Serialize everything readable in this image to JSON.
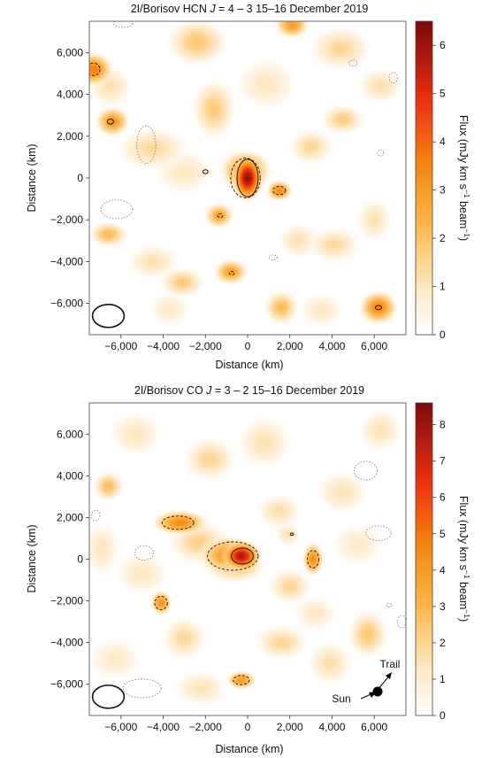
{
  "chart_data": [
    {
      "type": "heatmap",
      "title_prefix": "2I/Borisov HCN ",
      "title_italic": "J",
      "title_suffix": " = 4 – 3 15–16 December 2019",
      "xlabel": "Distance (km)",
      "ylabel": "Distance (km)",
      "xlim": [
        -7500,
        7500
      ],
      "ylim": [
        -7500,
        7500
      ],
      "x_ticks": [
        -6000,
        -4000,
        -2000,
        0,
        2000,
        4000,
        6000
      ],
      "x_tick_labels": [
        "−6,000",
        "−4,000",
        "−2,000",
        "0",
        "2,000",
        "4,000",
        "6,000"
      ],
      "y_ticks": [
        6000,
        4000,
        2000,
        0,
        -2000,
        -4000,
        -6000
      ],
      "y_tick_labels": [
        "6,000",
        "4,000",
        "2,000",
        "0",
        "−2,000",
        "−4,000",
        "−6,000"
      ],
      "colorbar": {
        "label_prefix": "Flux (mJy km s",
        "label_exp1": "−1",
        "label_mid": " beam",
        "label_exp2": "−1",
        "label_suffix": ")",
        "range": [
          0,
          6.5
        ],
        "ticks": [
          0,
          1,
          2,
          3,
          4,
          5,
          6
        ],
        "tick_labels": [
          "0",
          "1",
          "2",
          "3",
          "4",
          "5",
          "6"
        ]
      },
      "peak": {
        "x": 0,
        "y": 0,
        "flux": 6.2
      },
      "blobs": [
        {
          "x": 0,
          "y": 0,
          "flux": 6.2,
          "sx": 350,
          "sy": 550
        },
        {
          "x": -100,
          "y": 350,
          "flux": 3.2,
          "sx": 600,
          "sy": 500
        },
        {
          "x": 1500,
          "y": -600,
          "flux": 3.4,
          "sx": 300,
          "sy": 250
        },
        {
          "x": -6400,
          "y": 2700,
          "flux": 3.2,
          "sx": 400,
          "sy": 350
        },
        {
          "x": -7300,
          "y": 5200,
          "flux": 3.6,
          "sx": 450,
          "sy": 400
        },
        {
          "x": 6200,
          "y": -6200,
          "flux": 3.5,
          "sx": 450,
          "sy": 400
        },
        {
          "x": -1350,
          "y": -1800,
          "flux": 2.8,
          "sx": 350,
          "sy": 300
        },
        {
          "x": -800,
          "y": -4500,
          "flux": 2.9,
          "sx": 400,
          "sy": 300
        },
        {
          "x": 2100,
          "y": 7300,
          "flux": 3.0,
          "sx": 400,
          "sy": 300
        },
        {
          "x": -6600,
          "y": -2700,
          "flux": 2.2,
          "sx": 450,
          "sy": 300
        },
        {
          "x": -2400,
          "y": 6500,
          "flux": 1.9,
          "sx": 700,
          "sy": 550
        },
        {
          "x": -1600,
          "y": 3300,
          "flux": 1.8,
          "sx": 500,
          "sy": 700
        },
        {
          "x": 3000,
          "y": 1500,
          "flux": 1.5,
          "sx": 500,
          "sy": 400
        },
        {
          "x": 4500,
          "y": 2800,
          "flux": 1.7,
          "sx": 500,
          "sy": 350
        },
        {
          "x": 4400,
          "y": 6200,
          "flux": 1.5,
          "sx": 700,
          "sy": 500
        },
        {
          "x": 6300,
          "y": 4400,
          "flux": 1.3,
          "sx": 500,
          "sy": 400
        },
        {
          "x": -4500,
          "y": 1400,
          "flux": 1.4,
          "sx": 800,
          "sy": 500
        },
        {
          "x": -3100,
          "y": -5000,
          "flux": 1.8,
          "sx": 500,
          "sy": 350
        },
        {
          "x": 1600,
          "y": -6200,
          "flux": 2.2,
          "sx": 400,
          "sy": 400
        },
        {
          "x": -4500,
          "y": -4000,
          "flux": 1.2,
          "sx": 600,
          "sy": 400
        },
        {
          "x": -6500,
          "y": 4400,
          "flux": 1.2,
          "sx": 500,
          "sy": 500
        },
        {
          "x": 4100,
          "y": -3200,
          "flux": 1.4,
          "sx": 600,
          "sy": 400
        },
        {
          "x": 6000,
          "y": -2000,
          "flux": 1.2,
          "sx": 400,
          "sy": 500
        },
        {
          "x": 2400,
          "y": -3000,
          "flux": 1.2,
          "sx": 500,
          "sy": 400
        },
        {
          "x": -3000,
          "y": 300,
          "flux": 1.0,
          "sx": 700,
          "sy": 500
        },
        {
          "x": 900,
          "y": 4500,
          "flux": 1.0,
          "sx": 700,
          "sy": 600
        },
        {
          "x": -3700,
          "y": -6300,
          "flux": 0.9,
          "sx": 500,
          "sy": 400
        },
        {
          "x": 3500,
          "y": -6300,
          "flux": 1.0,
          "sx": 500,
          "sy": 400
        }
      ],
      "solid_contours": [
        {
          "x": 0,
          "y": 0,
          "rx": 500,
          "ry": 900
        },
        {
          "x": -2000,
          "y": 300,
          "rx": 120,
          "ry": 90
        },
        {
          "x": -6500,
          "y": 2700,
          "rx": 150,
          "ry": 120
        },
        {
          "x": 6200,
          "y": -6200,
          "rx": 150,
          "ry": 100
        }
      ],
      "dashed_contours": [
        {
          "x": -100,
          "y": 0,
          "rx": 700,
          "ry": 950
        },
        {
          "x": 1500,
          "y": -600,
          "rx": 300,
          "ry": 200
        },
        {
          "x": -1300,
          "y": -1800,
          "rx": 120,
          "ry": 90
        },
        {
          "x": -750,
          "y": -4550,
          "rx": 120,
          "ry": 80
        },
        {
          "x": -7300,
          "y": 5200,
          "rx": 300,
          "ry": 300
        }
      ],
      "dotted_contours": [
        {
          "x": -4800,
          "y": 1600,
          "rx": 450,
          "ry": 900
        },
        {
          "x": -6200,
          "y": -1500,
          "rx": 750,
          "ry": 450
        },
        {
          "x": -5900,
          "y": 7400,
          "rx": 450,
          "ry": 200
        },
        {
          "x": 6900,
          "y": 4800,
          "rx": 200,
          "ry": 250
        },
        {
          "x": 5000,
          "y": 5500,
          "rx": 200,
          "ry": 150
        },
        {
          "x": 6300,
          "y": 1200,
          "rx": 150,
          "ry": 150
        },
        {
          "x": 1200,
          "y": -3800,
          "rx": 200,
          "ry": 120
        }
      ],
      "beam": {
        "x": -6600,
        "y": -6600,
        "rx": 750,
        "ry": 550
      }
    },
    {
      "type": "heatmap",
      "title_prefix": "2I/Borisov CO ",
      "title_italic": "J",
      "title_suffix": " = 3 – 2 15–16 December 2019",
      "xlabel": "Distance (km)",
      "ylabel": "Distance (km)",
      "xlim": [
        -7500,
        7500
      ],
      "ylim": [
        -7500,
        7500
      ],
      "x_ticks": [
        -6000,
        -4000,
        -2000,
        0,
        2000,
        4000,
        6000
      ],
      "x_tick_labels": [
        "−6,000",
        "−4,000",
        "−2,000",
        "0",
        "2,000",
        "4,000",
        "6,000"
      ],
      "y_ticks": [
        6000,
        4000,
        2000,
        0,
        -2000,
        -4000,
        -6000
      ],
      "y_tick_labels": [
        "6,000",
        "4,000",
        "2,000",
        "0",
        "−2,000",
        "−4,000",
        "−6,000"
      ],
      "colorbar": {
        "label_prefix": "Flux (mJy km s",
        "label_exp1": "−1",
        "label_mid": " beam",
        "label_exp2": "−1",
        "label_suffix": ")",
        "range": [
          0,
          8.6
        ],
        "ticks": [
          0,
          1,
          2,
          3,
          4,
          5,
          6,
          7,
          8
        ],
        "tick_labels": [
          "0",
          "1",
          "2",
          "3",
          "4",
          "5",
          "6",
          "7",
          "8"
        ]
      },
      "peak": {
        "x": -300,
        "y": 200,
        "flux": 7.8
      },
      "blobs": [
        {
          "x": -300,
          "y": 150,
          "flux": 7.8,
          "sx": 450,
          "sy": 350
        },
        {
          "x": -900,
          "y": 200,
          "flux": 4.4,
          "sx": 700,
          "sy": 450
        },
        {
          "x": -600,
          "y": -300,
          "flux": 3.0,
          "sx": 700,
          "sy": 400
        },
        {
          "x": -3200,
          "y": 1750,
          "flux": 4.5,
          "sx": 650,
          "sy": 300
        },
        {
          "x": 3100,
          "y": 0,
          "flux": 4.4,
          "sx": 250,
          "sy": 400
        },
        {
          "x": -4100,
          "y": -2100,
          "flux": 4.3,
          "sx": 250,
          "sy": 300
        },
        {
          "x": -300,
          "y": -5800,
          "flux": 4.1,
          "sx": 350,
          "sy": 220
        },
        {
          "x": -6600,
          "y": 3500,
          "flux": 2.8,
          "sx": 350,
          "sy": 350
        },
        {
          "x": 5700,
          "y": -3600,
          "flux": 2.5,
          "sx": 450,
          "sy": 550
        },
        {
          "x": -2300,
          "y": 800,
          "flux": 2.2,
          "sx": 700,
          "sy": 500
        },
        {
          "x": 2000,
          "y": -1300,
          "flux": 2.0,
          "sx": 500,
          "sy": 400
        },
        {
          "x": -1800,
          "y": 4800,
          "flux": 2.0,
          "sx": 600,
          "sy": 500
        },
        {
          "x": 800,
          "y": 5600,
          "flux": 1.6,
          "sx": 600,
          "sy": 600
        },
        {
          "x": -3000,
          "y": -3800,
          "flux": 1.9,
          "sx": 500,
          "sy": 500
        },
        {
          "x": 1600,
          "y": -4000,
          "flux": 2.0,
          "sx": 600,
          "sy": 400
        },
        {
          "x": -2200,
          "y": -6200,
          "flux": 1.5,
          "sx": 600,
          "sy": 400
        },
        {
          "x": 3900,
          "y": -5000,
          "flux": 1.7,
          "sx": 500,
          "sy": 500
        },
        {
          "x": 1500,
          "y": 2300,
          "flux": 1.7,
          "sx": 500,
          "sy": 400
        },
        {
          "x": 4500,
          "y": 3200,
          "flux": 1.5,
          "sx": 600,
          "sy": 500
        },
        {
          "x": 6300,
          "y": 6200,
          "flux": 1.5,
          "sx": 500,
          "sy": 500
        },
        {
          "x": -5300,
          "y": 6000,
          "flux": 1.4,
          "sx": 600,
          "sy": 500
        },
        {
          "x": -6900,
          "y": 500,
          "flux": 1.4,
          "sx": 400,
          "sy": 600
        },
        {
          "x": -5000,
          "y": -700,
          "flux": 1.3,
          "sx": 600,
          "sy": 500
        },
        {
          "x": 5200,
          "y": 700,
          "flux": 1.2,
          "sx": 600,
          "sy": 500
        },
        {
          "x": -6300,
          "y": -4800,
          "flux": 1.2,
          "sx": 600,
          "sy": 500
        },
        {
          "x": 3200,
          "y": -2600,
          "flux": 1.3,
          "sx": 500,
          "sy": 400
        },
        {
          "x": 1900,
          "y": 1200,
          "flux": 1.5,
          "sx": 300,
          "sy": 300
        }
      ],
      "solid_contours": [
        {
          "x": -250,
          "y": 150,
          "rx": 520,
          "ry": 380
        },
        {
          "x": 2100,
          "y": 1200,
          "rx": 80,
          "ry": 60
        }
      ],
      "dashed_contours": [
        {
          "x": -700,
          "y": 150,
          "rx": 1200,
          "ry": 680
        },
        {
          "x": -3300,
          "y": 1750,
          "rx": 750,
          "ry": 320
        },
        {
          "x": 3100,
          "y": 0,
          "rx": 270,
          "ry": 420
        },
        {
          "x": -4100,
          "y": -2100,
          "rx": 300,
          "ry": 320
        },
        {
          "x": -300,
          "y": -5800,
          "rx": 380,
          "ry": 220
        }
      ],
      "dotted_contours": [
        {
          "x": -5000,
          "y": -6200,
          "rx": 900,
          "ry": 450
        },
        {
          "x": -4900,
          "y": 300,
          "rx": 450,
          "ry": 350
        },
        {
          "x": 6200,
          "y": 1250,
          "rx": 600,
          "ry": 350
        },
        {
          "x": 5600,
          "y": 4250,
          "rx": 550,
          "ry": 450
        },
        {
          "x": -7200,
          "y": 2100,
          "rx": 200,
          "ry": 250
        },
        {
          "x": 7300,
          "y": -3000,
          "rx": 200,
          "ry": 300
        },
        {
          "x": 6700,
          "y": -2200,
          "rx": 120,
          "ry": 100
        }
      ],
      "beam": {
        "x": -6600,
        "y": -6600,
        "rx": 750,
        "ry": 550
      },
      "sun_label": "Sun",
      "trail_label": "Trail"
    }
  ]
}
